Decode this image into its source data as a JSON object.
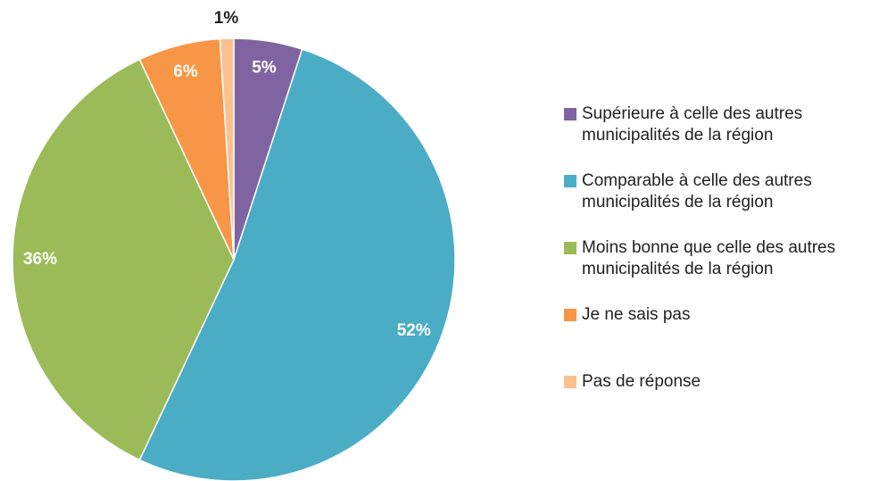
{
  "chart_data": {
    "type": "pie",
    "categories": [
      "Supérieure à celle des autres municipalités de la région",
      "Comparable à celle des autres municipalités de la région",
      "Moins bonne que celle des autres municipalités de la région",
      "Je ne sais pas",
      "Pas de réponse"
    ],
    "values": [
      5,
      52,
      36,
      6,
      1
    ],
    "value_labels": [
      "5%",
      "52%",
      "36%",
      "6%",
      "1%"
    ],
    "colors": [
      "#8064a2",
      "#4bacc6",
      "#9bbb59",
      "#f79646",
      "#fac090"
    ],
    "legend": "right"
  }
}
